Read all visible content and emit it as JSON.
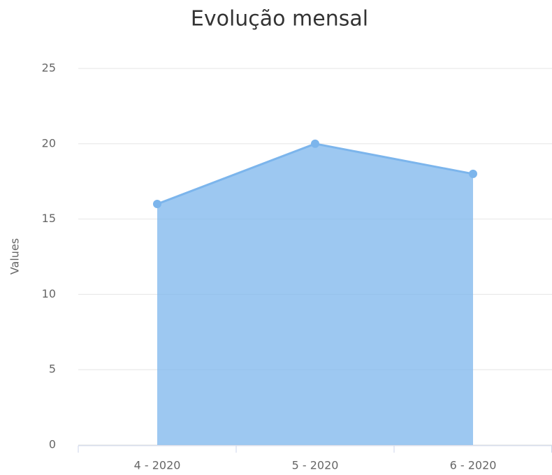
{
  "chart_data": {
    "type": "area",
    "title": "Evolução mensal",
    "y_label": "Values",
    "categories": [
      "4 - 2020",
      "5 - 2020",
      "6 - 2020"
    ],
    "values": [
      16,
      20,
      18
    ],
    "color": "#7cb5ec",
    "ylim": [
      0,
      25
    ],
    "yticks": [
      0,
      5,
      10,
      15,
      20,
      25
    ],
    "grid": true
  }
}
